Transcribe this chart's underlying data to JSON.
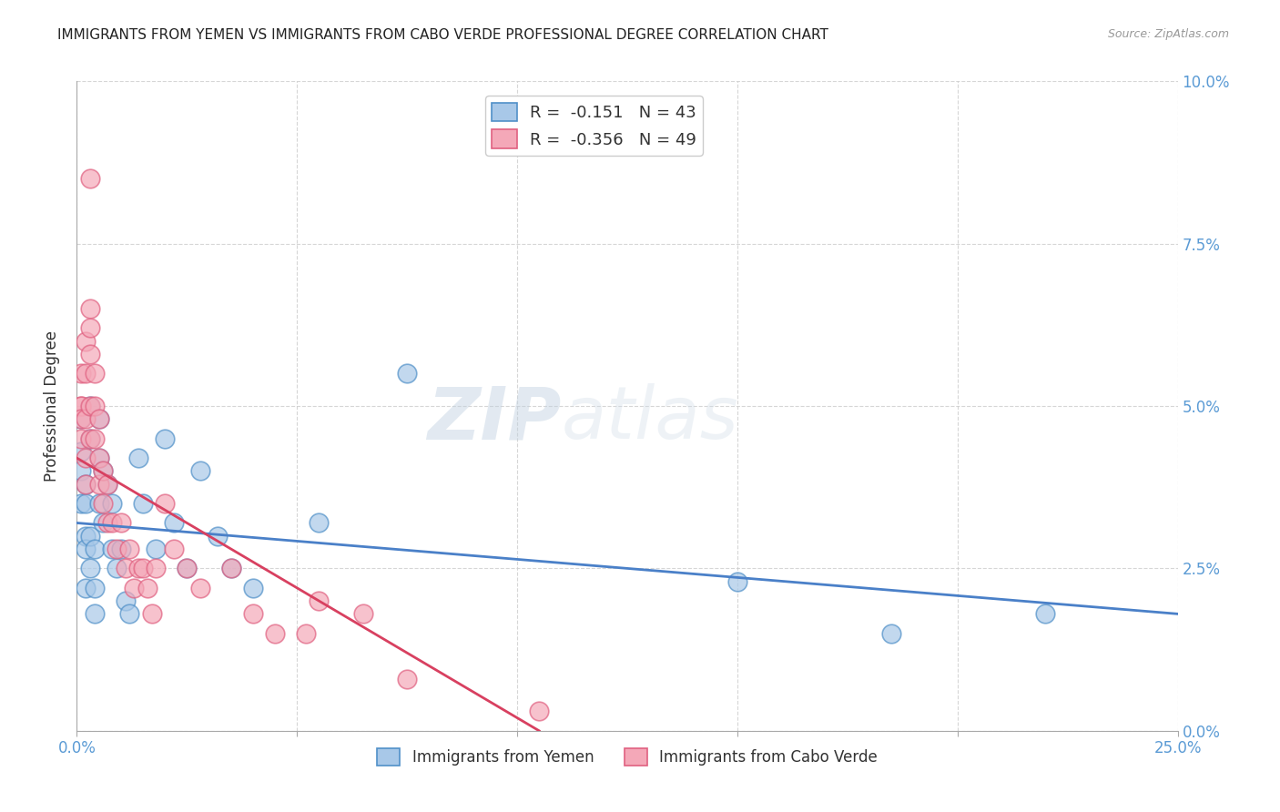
{
  "title": "IMMIGRANTS FROM YEMEN VS IMMIGRANTS FROM CABO VERDE PROFESSIONAL DEGREE CORRELATION CHART",
  "source": "Source: ZipAtlas.com",
  "ylabel": "Professional Degree",
  "xlim": [
    0.0,
    0.25
  ],
  "ylim": [
    0.0,
    0.1
  ],
  "xtick_positions": [
    0.0,
    0.05,
    0.1,
    0.15,
    0.2,
    0.25
  ],
  "xtick_labels": [
    "0.0%",
    "",
    "",
    "",
    "",
    "25.0%"
  ],
  "ytick_positions": [
    0.0,
    0.025,
    0.05,
    0.075,
    0.1
  ],
  "ytick_labels": [
    "0.0%",
    "2.5%",
    "5.0%",
    "7.5%",
    "10.0%"
  ],
  "series1_color": "#a8c8e8",
  "series2_color": "#f4a8b8",
  "series1_edge": "#5090c8",
  "series2_edge": "#e06080",
  "trendline1_color": "#4a80c8",
  "trendline2_color": "#d84060",
  "background_color": "#ffffff",
  "grid_color": "#cccccc",
  "axis_color": "#5b9bd5",
  "title_fontsize": 11,
  "watermark_zip": "ZIP",
  "watermark_atlas": "atlas",
  "legend_label1": "R =  -0.151   N = 43",
  "legend_label2": "R =  -0.356   N = 49",
  "bottom_label1": "Immigrants from Yemen",
  "bottom_label2": "Immigrants from Cabo Verde",
  "yemen_x": [
    0.001,
    0.001,
    0.001,
    0.001,
    0.002,
    0.002,
    0.002,
    0.002,
    0.002,
    0.003,
    0.003,
    0.003,
    0.003,
    0.004,
    0.004,
    0.004,
    0.005,
    0.005,
    0.005,
    0.006,
    0.006,
    0.007,
    0.008,
    0.008,
    0.009,
    0.01,
    0.011,
    0.012,
    0.014,
    0.015,
    0.018,
    0.02,
    0.022,
    0.025,
    0.028,
    0.032,
    0.035,
    0.04,
    0.055,
    0.075,
    0.15,
    0.185,
    0.22
  ],
  "yemen_y": [
    0.035,
    0.04,
    0.043,
    0.048,
    0.038,
    0.035,
    0.03,
    0.028,
    0.022,
    0.05,
    0.045,
    0.03,
    0.025,
    0.028,
    0.022,
    0.018,
    0.048,
    0.042,
    0.035,
    0.04,
    0.032,
    0.038,
    0.035,
    0.028,
    0.025,
    0.028,
    0.02,
    0.018,
    0.042,
    0.035,
    0.028,
    0.045,
    0.032,
    0.025,
    0.04,
    0.03,
    0.025,
    0.022,
    0.032,
    0.055,
    0.023,
    0.015,
    0.018
  ],
  "caboverde_x": [
    0.001,
    0.001,
    0.001,
    0.001,
    0.001,
    0.002,
    0.002,
    0.002,
    0.002,
    0.002,
    0.003,
    0.003,
    0.003,
    0.003,
    0.003,
    0.003,
    0.004,
    0.004,
    0.004,
    0.005,
    0.005,
    0.005,
    0.006,
    0.006,
    0.007,
    0.007,
    0.008,
    0.009,
    0.01,
    0.011,
    0.012,
    0.013,
    0.014,
    0.015,
    0.016,
    0.017,
    0.018,
    0.02,
    0.022,
    0.025,
    0.028,
    0.035,
    0.04,
    0.045,
    0.052,
    0.055,
    0.065,
    0.075,
    0.105
  ],
  "caboverde_y": [
    0.05,
    0.05,
    0.048,
    0.045,
    0.055,
    0.06,
    0.055,
    0.048,
    0.042,
    0.038,
    0.085,
    0.065,
    0.062,
    0.058,
    0.05,
    0.045,
    0.055,
    0.05,
    0.045,
    0.048,
    0.042,
    0.038,
    0.04,
    0.035,
    0.038,
    0.032,
    0.032,
    0.028,
    0.032,
    0.025,
    0.028,
    0.022,
    0.025,
    0.025,
    0.022,
    0.018,
    0.025,
    0.035,
    0.028,
    0.025,
    0.022,
    0.025,
    0.018,
    0.015,
    0.015,
    0.02,
    0.018,
    0.008,
    0.003
  ],
  "trendline1_x": [
    0.0,
    0.25
  ],
  "trendline1_y": [
    0.032,
    0.018
  ],
  "trendline2_x": [
    0.0,
    0.105
  ],
  "trendline2_y": [
    0.042,
    0.0
  ]
}
